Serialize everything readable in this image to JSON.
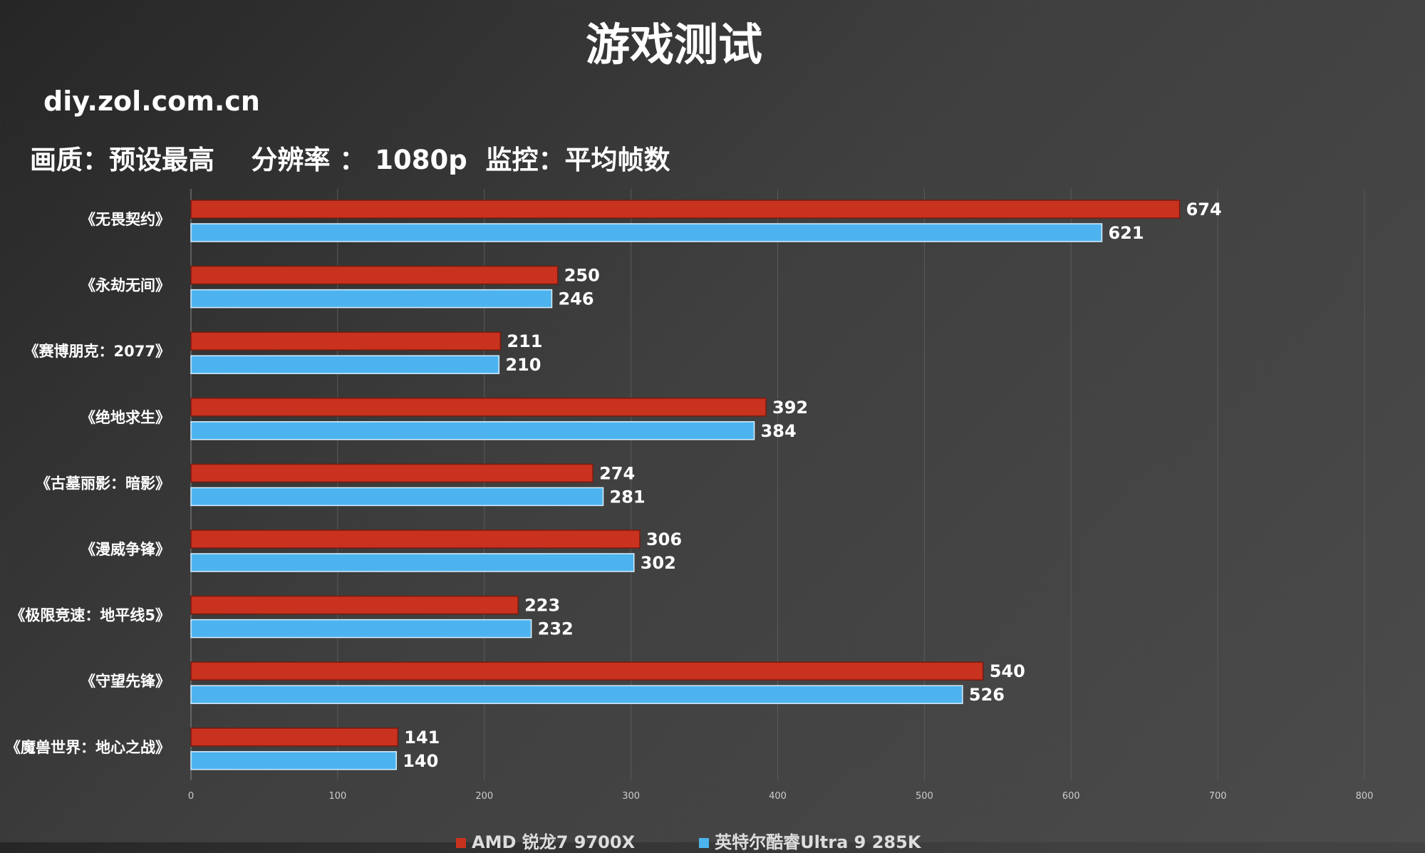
{
  "chart_data": {
    "type": "bar",
    "orientation": "horizontal",
    "title": "游戏测试",
    "watermark": "diy.zol.com.cn",
    "subtitle": "画质：预设最高    分辨率 ： 1080p  监控：平均帧数",
    "categories": [
      "《无畏契约》",
      "《永劫无间》",
      "《赛博朋克：2077》",
      "《绝地求生》",
      "《古墓丽影：暗影》",
      "《漫威争锋》",
      "《极限竞速：地平线5》",
      "《守望先锋》",
      "《魔兽世界：地心之战》"
    ],
    "series": [
      {
        "name": "AMD 锐龙7 9700X",
        "color": "#c8321e",
        "values": [
          674,
          250,
          211,
          392,
          274,
          306,
          223,
          540,
          141
        ]
      },
      {
        "name": "英特尔酷睿Ultra 9 285K",
        "color": "#4db3ee",
        "values": [
          621,
          246,
          210,
          384,
          281,
          302,
          232,
          526,
          140
        ]
      }
    ],
    "xlim": [
      0,
      800
    ],
    "xticks": [
      "0",
      "100",
      "200",
      "300",
      "400",
      "500",
      "600",
      "700",
      "800"
    ],
    "grid": true,
    "legend_position": "bottom"
  }
}
